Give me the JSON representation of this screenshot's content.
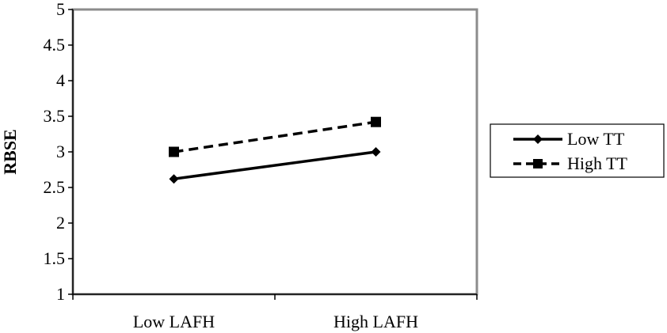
{
  "chart_data": {
    "type": "line",
    "title": "",
    "xlabel": "",
    "ylabel": "RBSE",
    "categories": [
      "Low LAFH",
      "High LAFH"
    ],
    "ylim": [
      1,
      5
    ],
    "yticks": [
      "1",
      "1.5",
      "2",
      "2.5",
      "3",
      "3.5",
      "4",
      "4.5",
      "5"
    ],
    "grid": false,
    "legend_position": "right",
    "series": [
      {
        "name": "Low TT",
        "values": [
          2.62,
          3.0
        ],
        "style": "solid",
        "marker": "diamond",
        "color": "#000000"
      },
      {
        "name": "High TT",
        "values": [
          3.0,
          3.42
        ],
        "style": "dashed",
        "marker": "square",
        "color": "#000000"
      }
    ]
  }
}
